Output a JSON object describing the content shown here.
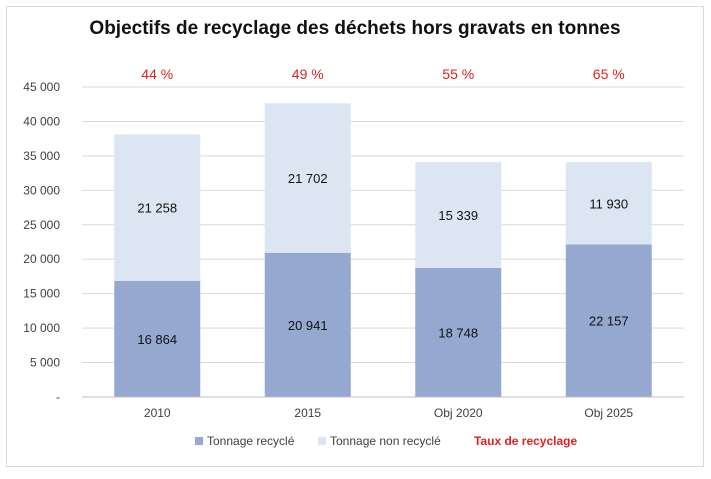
{
  "chart_data": {
    "type": "bar",
    "stacked": true,
    "title": "Objectifs de recyclage des déchets hors gravats en tonnes",
    "categories": [
      "2010",
      "2015",
      "Obj 2020",
      "Obj 2025"
    ],
    "series": [
      {
        "name": "Tonnage recyclé",
        "values": [
          16864,
          20941,
          18748,
          22157
        ],
        "labels": [
          "16 864",
          "20 941",
          "18 748",
          "22 157"
        ],
        "color": "#95a9d0"
      },
      {
        "name": "Tonnage non recyclé",
        "values": [
          21258,
          21702,
          15339,
          11930
        ],
        "labels": [
          "21 258",
          "21 702",
          "15 339",
          "11 930"
        ],
        "color": "#dce5f2"
      }
    ],
    "rate_series": {
      "name": "Taux de recyclage",
      "labels": [
        "44 %",
        "49 %",
        "55 %",
        "65 %"
      ],
      "color": "#e02020"
    },
    "y_ticks": [
      {
        "value": 0,
        "label": "-"
      },
      {
        "value": 5000,
        "label": "5 000"
      },
      {
        "value": 10000,
        "label": "10 000"
      },
      {
        "value": 15000,
        "label": "15 000"
      },
      {
        "value": 20000,
        "label": "20 000"
      },
      {
        "value": 25000,
        "label": "25 000"
      },
      {
        "value": 30000,
        "label": "30 000"
      },
      {
        "value": 35000,
        "label": "35 000"
      },
      {
        "value": 40000,
        "label": "40 000"
      },
      {
        "value": 45000,
        "label": "45 000"
      }
    ],
    "ylim": [
      0,
      45000
    ],
    "grid": true,
    "legend_position": "bottom",
    "xlabel": "",
    "ylabel": ""
  }
}
